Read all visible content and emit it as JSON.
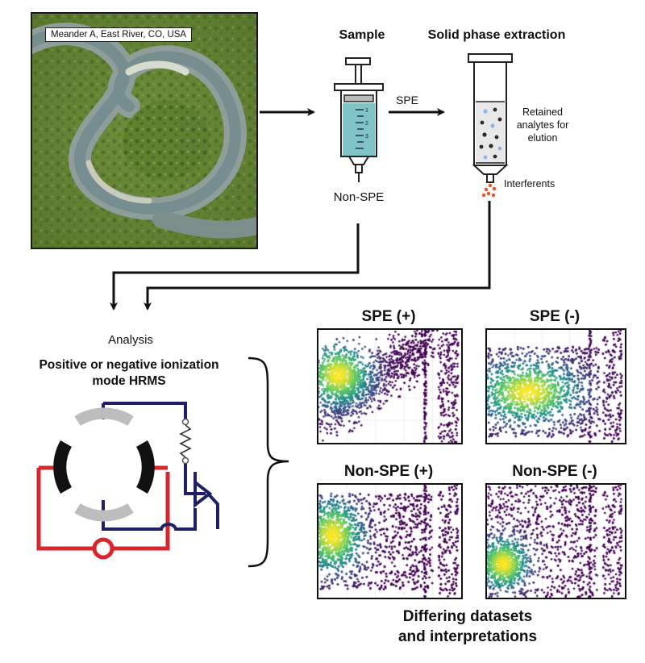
{
  "map": {
    "label": "Meander A, East River, CO, USA"
  },
  "sample": {
    "title": "Sample",
    "non_spe_label": "Non-SPE",
    "syringe_ticks": [
      "1",
      "2",
      "3"
    ]
  },
  "spe": {
    "title": "Solid phase extraction",
    "arrow_label": "SPE",
    "retained_label": "Retained\nanalytes for\nelution",
    "interferents_label": "Interferents"
  },
  "analysis": {
    "label": "Analysis",
    "mode_label": "Positive or negative ionization\nmode HRMS"
  },
  "results": {
    "caption": "Differing datasets\nand interpretations",
    "panels": [
      {
        "id": "spe-pos",
        "title": "SPE (+)"
      },
      {
        "id": "spe-neg",
        "title": "SPE (-)"
      },
      {
        "id": "nonspe-pos",
        "title": "Non-SPE (+)"
      },
      {
        "id": "nonspe-neg",
        "title": "Non-SPE (-)"
      }
    ]
  },
  "colors": {
    "circuit_red": "#d6262e",
    "circuit_navy": "#1f2166",
    "syringe_fill": "#7fc4c6",
    "interferent": "#e4542a",
    "analyte_dark": "#2b2b2b",
    "analyte_blue": "#8bb8e8",
    "viridis_low": "#3b0f70",
    "viridis_high": "#fde725"
  },
  "icons": [
    "arrow-right-icon",
    "arrow-down-icon",
    "syringe-icon",
    "spe-cartridge-icon",
    "curly-brace-icon",
    "ion-trap-icon",
    "resistor-icon"
  ]
}
